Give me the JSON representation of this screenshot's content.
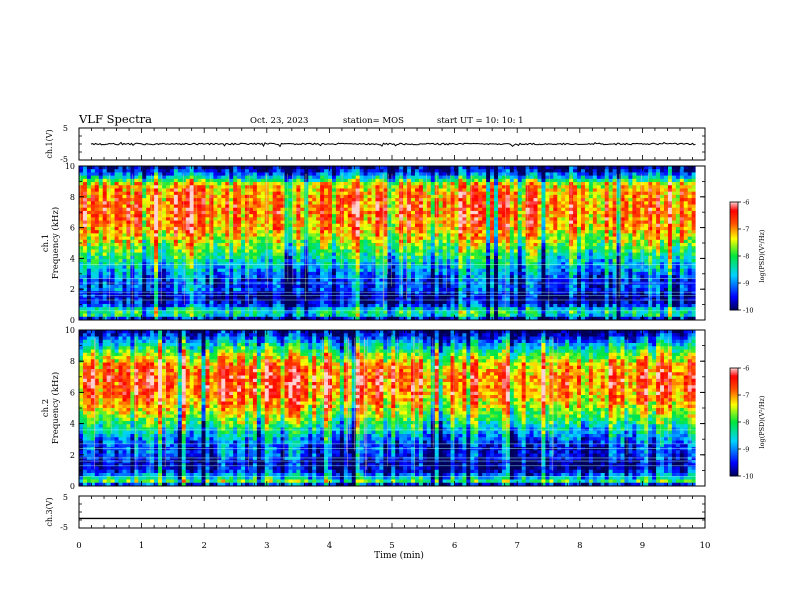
{
  "header": {
    "title": "VLF Spectra",
    "date": "Oct. 23, 2023",
    "station": "station= MOS",
    "start_ut": "start UT =  10: 10: 1"
  },
  "chart_data": [
    {
      "type": "line",
      "ylabel": "ch.1(V)",
      "ylim": [
        -5,
        5
      ],
      "yticks": [
        5,
        -5
      ],
      "baseline": 0,
      "description_level": "near 0 with small noise"
    },
    {
      "type": "heatmap",
      "ylabel_line1": "ch.1",
      "ylabel_line2": "Frequency (kHz)",
      "ylim": [
        0,
        10
      ],
      "yticks": [
        0,
        2,
        4,
        6,
        8,
        10
      ],
      "xlim": [
        0,
        10
      ],
      "colorbar": {
        "label": "log(PSD)(V²/Hz)",
        "range": [
          -10,
          -6
        ],
        "ticks": [
          -6,
          -7,
          -8,
          -9,
          -10
        ]
      },
      "band_profile": [
        {
          "f": 0.0,
          "v": -10
        },
        {
          "f": 0.3,
          "v": -8.5
        },
        {
          "f": 0.6,
          "v": -8.2
        },
        {
          "f": 1.0,
          "v": -9.5
        },
        {
          "f": 1.5,
          "v": -9.8
        },
        {
          "f": 2.0,
          "v": -9.2
        },
        {
          "f": 2.5,
          "v": -9.4
        },
        {
          "f": 3.0,
          "v": -9.0
        },
        {
          "f": 3.6,
          "v": -8.6
        },
        {
          "f": 4.2,
          "v": -8.2
        },
        {
          "f": 5.0,
          "v": -7.6
        },
        {
          "f": 6.0,
          "v": -7.0
        },
        {
          "f": 7.0,
          "v": -6.8
        },
        {
          "f": 8.0,
          "v": -6.9
        },
        {
          "f": 8.8,
          "v": -7.2
        },
        {
          "f": 9.2,
          "v": -8.5
        },
        {
          "f": 9.6,
          "v": -9.4
        },
        {
          "f": 10.0,
          "v": -10
        }
      ]
    },
    {
      "type": "heatmap",
      "ylabel_line1": "ch.2",
      "ylabel_line2": "Frequency (kHz)",
      "ylim": [
        0,
        10
      ],
      "yticks": [
        0,
        2,
        4,
        6,
        8,
        10
      ],
      "xlim": [
        0,
        10
      ],
      "colorbar": {
        "label": "log(PSD)(V²/Hz)",
        "range": [
          -10,
          -6
        ],
        "ticks": [
          -6,
          -7,
          -8,
          -9,
          -10
        ]
      },
      "band_profile": [
        {
          "f": 0.0,
          "v": -10
        },
        {
          "f": 0.3,
          "v": -8.0
        },
        {
          "f": 0.6,
          "v": -8.8
        },
        {
          "f": 1.0,
          "v": -9.6
        },
        {
          "f": 1.5,
          "v": -9.8
        },
        {
          "f": 2.0,
          "v": -9.3
        },
        {
          "f": 2.5,
          "v": -9.4
        },
        {
          "f": 3.0,
          "v": -9.0
        },
        {
          "f": 3.6,
          "v": -8.5
        },
        {
          "f": 4.4,
          "v": -7.8
        },
        {
          "f": 5.2,
          "v": -7.2
        },
        {
          "f": 6.0,
          "v": -6.8
        },
        {
          "f": 7.0,
          "v": -6.7
        },
        {
          "f": 7.8,
          "v": -7.0
        },
        {
          "f": 8.5,
          "v": -7.8
        },
        {
          "f": 9.2,
          "v": -8.8
        },
        {
          "f": 9.7,
          "v": -9.6
        },
        {
          "f": 10.0,
          "v": -10
        }
      ]
    },
    {
      "type": "line",
      "ylabel": "ch.3(V)",
      "ylim": [
        -5,
        5
      ],
      "yticks": [
        5,
        -5
      ],
      "baseline": -2.0
    }
  ],
  "xaxis": {
    "label": "Time (min)",
    "range": [
      0,
      10
    ],
    "ticks": [
      0,
      1,
      2,
      3,
      4,
      5,
      6,
      7,
      8,
      9,
      10
    ]
  }
}
